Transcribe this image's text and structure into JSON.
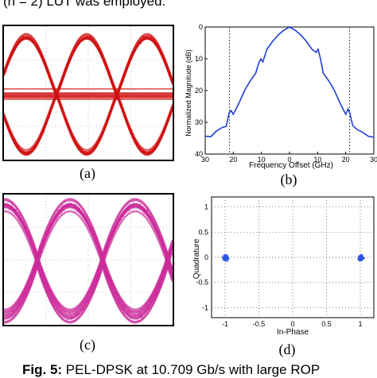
{
  "top_text": "(n = 2) LUT was employed.",
  "labels": {
    "a": "(a)",
    "b": "(b)",
    "c": "(c)",
    "d": "(d)"
  },
  "caption": {
    "bold": "Fig. 5:",
    "text": " PEL-DPSK at 10.709 Gb/s with large ROP"
  },
  "colors": {
    "eye_red": "#d01010",
    "eye_magenta": "#cc2a9a",
    "spectrum_blue": "#1f3fd6",
    "constellation_blue": "#2a55e0"
  },
  "chart_data": [
    {
      "type": "line",
      "panel": "b",
      "xlabel": "Frequency Offset (GHz)",
      "ylabel": "Normalized Magnitude (dB)",
      "xlim": [
        -30,
        30
      ],
      "ylim": [
        0,
        40
      ],
      "y_inverted": true,
      "x_ticks": [
        "30",
        "20",
        "10",
        "0",
        "10",
        "20",
        "30"
      ],
      "y_ticks": [
        "0",
        "10",
        "20",
        "30",
        "40"
      ],
      "vlines_dashed": [
        -21.4,
        21.4
      ],
      "series": [
        {
          "x": [
            -30,
            -28,
            -26,
            -24,
            -22.5,
            -21.5,
            -20.8,
            -20,
            -18,
            -16,
            -14,
            -12,
            -11,
            -10.2,
            -9.5,
            -8,
            -6,
            -4,
            -2,
            0,
            2,
            4,
            6,
            8,
            9.5,
            10.2,
            11,
            12,
            14,
            16,
            18,
            20,
            20.8,
            21.5,
            22.5,
            24,
            26,
            28,
            30
          ],
          "y": [
            35,
            34,
            33,
            32,
            31,
            27,
            26.5,
            27.5,
            24,
            20,
            17,
            14.5,
            11.5,
            10,
            11,
            7,
            4.5,
            2.5,
            1,
            0,
            1,
            2.5,
            4.5,
            7,
            8,
            7,
            10,
            14.5,
            17,
            20,
            24,
            27.5,
            25.5,
            27,
            31,
            32,
            33,
            34,
            35
          ]
        }
      ]
    },
    {
      "type": "scatter",
      "panel": "d",
      "xlabel": "In-Phase",
      "ylabel": "Quadrature",
      "xlim": [
        -1.2,
        1.2
      ],
      "ylim": [
        -1.2,
        1.2
      ],
      "x_ticks": [
        "-1",
        "-0.5",
        "0",
        "0.5",
        "1"
      ],
      "y_ticks": [
        "1",
        "0.5",
        "0",
        "-0.5",
        "-1"
      ],
      "clusters": [
        {
          "center": [
            -1,
            0
          ],
          "spread": [
            0.035,
            0.05
          ]
        },
        {
          "center": [
            1,
            0
          ],
          "spread": [
            0.035,
            0.05
          ]
        }
      ]
    }
  ]
}
